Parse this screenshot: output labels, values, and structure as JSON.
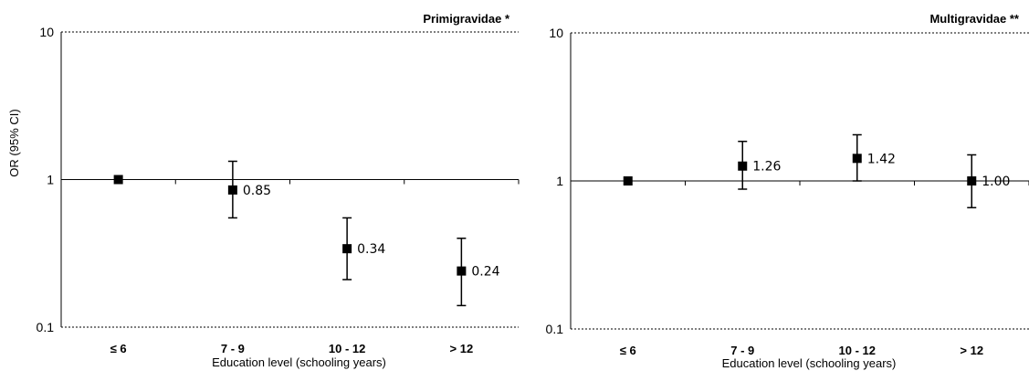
{
  "chart_data": [
    {
      "type": "scatter",
      "title": "Primigravidae *",
      "xlabel": "Education level (schooling years)",
      "ylabel": "OR (95% CI)",
      "yscale": "log",
      "ylim": [
        0.1,
        10
      ],
      "yticks": [
        0.1,
        1,
        10
      ],
      "ytick_labels": [
        "0.1",
        "1",
        "10"
      ],
      "gridlines": [
        10,
        0.1
      ],
      "categories": [
        "≤ 6",
        "7 - 9",
        "10 - 12",
        "> 12"
      ],
      "values": [
        1.0,
        0.85,
        0.34,
        0.24
      ],
      "ci_lower": [
        null,
        0.55,
        0.21,
        0.14
      ],
      "ci_upper": [
        null,
        1.33,
        0.55,
        0.4
      ],
      "labels": [
        "",
        "0.85",
        "0.34",
        "0.24"
      ]
    },
    {
      "type": "scatter",
      "title": "Multigravidae **",
      "xlabel": "Education level (schooling years)",
      "ylabel": "",
      "yscale": "log",
      "ylim": [
        0.1,
        10
      ],
      "yticks": [
        0.1,
        1,
        10
      ],
      "ytick_labels": [
        "0.1",
        "1",
        "10"
      ],
      "gridlines": [
        10,
        0.1
      ],
      "categories": [
        "≤ 6",
        "7 - 9",
        "10 - 12",
        "> 12"
      ],
      "values": [
        1.0,
        1.26,
        1.42,
        1.0
      ],
      "ci_lower": [
        null,
        0.88,
        1.0,
        0.66
      ],
      "ci_upper": [
        null,
        1.85,
        2.05,
        1.5
      ],
      "labels": [
        "",
        "1.26",
        "1.42",
        "1.00"
      ]
    }
  ]
}
